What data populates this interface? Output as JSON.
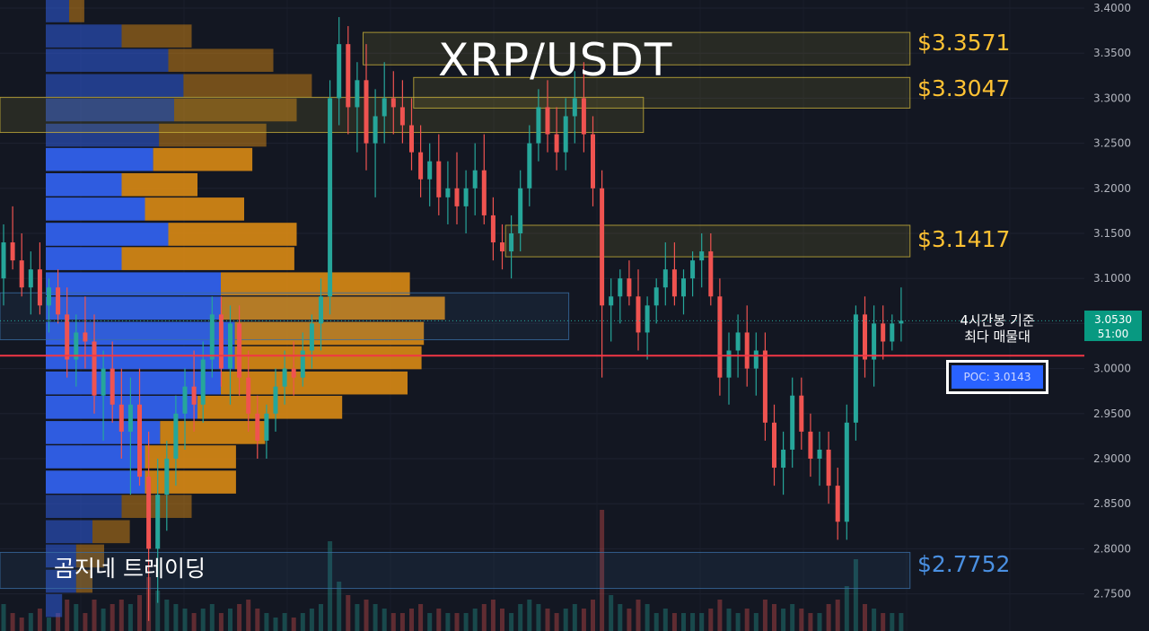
{
  "header": {
    "title": "XRP/USDT"
  },
  "watermark": "곰지네 트레이딩",
  "annotation": {
    "poc_note_line1": "4시간봉 기준",
    "poc_note_line2": "최다 매물대",
    "poc_label": "POC: 3.0143"
  },
  "price_badge": {
    "price": "3.0530",
    "countdown": "51:00"
  },
  "zone_labels": [
    {
      "text": "$3.3571",
      "color": "#ffc233"
    },
    {
      "text": "$3.3047",
      "color": "#ffc233"
    },
    {
      "text": "$3.1417",
      "color": "#ffc233"
    },
    {
      "text": "$2.7752",
      "color": "#4a90e2"
    }
  ],
  "colors": {
    "up": "#26a69a",
    "down": "#ef5350",
    "vp_buy": "#2f5ce0",
    "vp_sell": "#d98a14",
    "zone_yellow": "#c9b23a",
    "zone_blue": "#3a6ea5",
    "poc_line": "#f23645"
  },
  "chart_data": {
    "type": "candlestick",
    "title": "XRP/USDT",
    "timeframe_note": "4시간봉",
    "y_axis": {
      "range": [
        2.72,
        3.41
      ],
      "ticks": [
        "3.4000",
        "3.3500",
        "3.3000",
        "3.2500",
        "3.2000",
        "3.1500",
        "3.1000",
        "3.0500",
        "3.0000",
        "2.9500",
        "2.9000",
        "2.8500",
        "2.8000",
        "2.7500"
      ]
    },
    "current_price": 3.053,
    "poc": 3.0143,
    "zones": [
      {
        "label": "$3.3571",
        "top": 3.373,
        "bottom": 3.337,
        "x_start": 0.316,
        "x_end": 0.792,
        "kind": "resistance"
      },
      {
        "label": "$3.3047",
        "top": 3.323,
        "bottom": 3.289,
        "x_start": 0.36,
        "x_end": 0.792,
        "kind": "resistance"
      },
      {
        "label": "",
        "top": 3.301,
        "bottom": 3.262,
        "x_start": 0.0,
        "x_end": 0.56,
        "kind": "resistance"
      },
      {
        "label": "$3.1417",
        "top": 3.159,
        "bottom": 3.124,
        "x_start": 0.44,
        "x_end": 0.792,
        "kind": "resistance"
      },
      {
        "label": "",
        "top": 3.084,
        "bottom": 3.032,
        "x_start": 0.0,
        "x_end": 0.495,
        "kind": "support"
      },
      {
        "label": "$2.7752",
        "top": 2.796,
        "bottom": 2.756,
        "x_start": 0.0,
        "x_end": 0.792,
        "kind": "support"
      }
    ],
    "volume_profile": {
      "bin_size": 0.0275,
      "bins": [
        {
          "price": 3.397,
          "buy": 20,
          "sell": 13
        },
        {
          "price": 3.369,
          "buy": 65,
          "sell": 60
        },
        {
          "price": 3.342,
          "buy": 105,
          "sell": 90
        },
        {
          "price": 3.314,
          "buy": 118,
          "sell": 110
        },
        {
          "price": 3.287,
          "buy": 110,
          "sell": 105
        },
        {
          "price": 3.259,
          "buy": 97,
          "sell": 92
        },
        {
          "price": 3.232,
          "buy": 92,
          "sell": 85
        },
        {
          "price": 3.204,
          "buy": 65,
          "sell": 65
        },
        {
          "price": 3.177,
          "buy": 85,
          "sell": 85
        },
        {
          "price": 3.149,
          "buy": 105,
          "sell": 110
        },
        {
          "price": 3.122,
          "buy": 65,
          "sell": 148
        },
        {
          "price": 3.094,
          "buy": 150,
          "sell": 162
        },
        {
          "price": 3.067,
          "buy": 150,
          "sell": 192
        },
        {
          "price": 3.039,
          "buy": 162,
          "sell": 162
        },
        {
          "price": 3.012,
          "buy": 162,
          "sell": 160
        },
        {
          "price": 2.984,
          "buy": 150,
          "sell": 160
        },
        {
          "price": 2.957,
          "buy": 130,
          "sell": 124
        },
        {
          "price": 2.929,
          "buy": 98,
          "sell": 90
        },
        {
          "price": 2.902,
          "buy": 85,
          "sell": 78
        },
        {
          "price": 2.874,
          "buy": 85,
          "sell": 78
        },
        {
          "price": 2.847,
          "buy": 65,
          "sell": 60
        },
        {
          "price": 2.819,
          "buy": 40,
          "sell": 32
        },
        {
          "price": 2.792,
          "buy": 26,
          "sell": 24
        },
        {
          "price": 2.764,
          "buy": 26,
          "sell": 14
        },
        {
          "price": 2.737,
          "buy": 14,
          "sell": 0
        }
      ]
    },
    "candles": [
      [
        3.1,
        3.16,
        3.07,
        3.14
      ],
      [
        3.14,
        3.18,
        3.11,
        3.12
      ],
      [
        3.12,
        3.15,
        3.08,
        3.09
      ],
      [
        3.09,
        3.13,
        3.06,
        3.11
      ],
      [
        3.11,
        3.14,
        3.06,
        3.07
      ],
      [
        3.07,
        3.1,
        3.04,
        3.09
      ],
      [
        3.09,
        3.11,
        3.05,
        3.06
      ],
      [
        3.06,
        3.09,
        2.99,
        3.01
      ],
      [
        3.01,
        3.06,
        2.98,
        3.04
      ],
      [
        3.04,
        3.08,
        3.0,
        3.03
      ],
      [
        3.03,
        3.06,
        2.95,
        2.97
      ],
      [
        2.97,
        3.02,
        2.92,
        3.0
      ],
      [
        3.0,
        3.03,
        2.94,
        2.96
      ],
      [
        2.96,
        3.0,
        2.9,
        2.93
      ],
      [
        2.93,
        2.99,
        2.86,
        2.96
      ],
      [
        2.96,
        3.0,
        2.87,
        2.88
      ],
      [
        2.88,
        2.93,
        2.72,
        2.8
      ],
      [
        2.8,
        2.9,
        2.74,
        2.86
      ],
      [
        2.86,
        2.92,
        2.82,
        2.9
      ],
      [
        2.9,
        2.97,
        2.87,
        2.95
      ],
      [
        2.95,
        3.0,
        2.91,
        2.98
      ],
      [
        2.98,
        3.02,
        2.93,
        2.96
      ],
      [
        2.96,
        3.03,
        2.94,
        3.01
      ],
      [
        3.01,
        3.08,
        2.99,
        3.06
      ],
      [
        3.06,
        3.08,
        2.98,
        3.0
      ],
      [
        3.0,
        3.07,
        2.96,
        3.05
      ],
      [
        3.05,
        3.07,
        2.97,
        2.99
      ],
      [
        2.99,
        3.02,
        2.93,
        2.95
      ],
      [
        2.95,
        2.97,
        2.9,
        2.92
      ],
      [
        2.92,
        2.96,
        2.9,
        2.95
      ],
      [
        2.95,
        3.0,
        2.93,
        2.98
      ],
      [
        2.98,
        3.02,
        2.96,
        3.0
      ],
      [
        3.0,
        3.03,
        2.97,
        2.99
      ],
      [
        2.99,
        3.04,
        2.98,
        3.02
      ],
      [
        3.02,
        3.06,
        3.0,
        3.05
      ],
      [
        3.05,
        3.1,
        3.02,
        3.08
      ],
      [
        3.08,
        3.32,
        3.06,
        3.3
      ],
      [
        3.3,
        3.39,
        3.27,
        3.36
      ],
      [
        3.36,
        3.38,
        3.26,
        3.29
      ],
      [
        3.29,
        3.34,
        3.24,
        3.32
      ],
      [
        3.32,
        3.36,
        3.22,
        3.25
      ],
      [
        3.25,
        3.31,
        3.19,
        3.28
      ],
      [
        3.28,
        3.34,
        3.25,
        3.3
      ],
      [
        3.3,
        3.33,
        3.26,
        3.29
      ],
      [
        3.29,
        3.32,
        3.25,
        3.27
      ],
      [
        3.27,
        3.3,
        3.22,
        3.24
      ],
      [
        3.24,
        3.27,
        3.19,
        3.21
      ],
      [
        3.21,
        3.25,
        3.18,
        3.23
      ],
      [
        3.23,
        3.26,
        3.17,
        3.19
      ],
      [
        3.19,
        3.23,
        3.16,
        3.2
      ],
      [
        3.2,
        3.24,
        3.16,
        3.18
      ],
      [
        3.18,
        3.22,
        3.15,
        3.2
      ],
      [
        3.2,
        3.25,
        3.17,
        3.22
      ],
      [
        3.22,
        3.26,
        3.16,
        3.17
      ],
      [
        3.17,
        3.19,
        3.12,
        3.14
      ],
      [
        3.14,
        3.16,
        3.11,
        3.13
      ],
      [
        3.13,
        3.17,
        3.1,
        3.15
      ],
      [
        3.15,
        3.22,
        3.13,
        3.2
      ],
      [
        3.2,
        3.27,
        3.18,
        3.25
      ],
      [
        3.25,
        3.31,
        3.23,
        3.29
      ],
      [
        3.29,
        3.32,
        3.24,
        3.26
      ],
      [
        3.26,
        3.29,
        3.22,
        3.24
      ],
      [
        3.24,
        3.3,
        3.22,
        3.28
      ],
      [
        3.28,
        3.33,
        3.25,
        3.3
      ],
      [
        3.3,
        3.34,
        3.24,
        3.26
      ],
      [
        3.26,
        3.28,
        3.18,
        3.2
      ],
      [
        3.2,
        3.22,
        2.99,
        3.07
      ],
      [
        3.07,
        3.1,
        3.03,
        3.08
      ],
      [
        3.08,
        3.11,
        3.05,
        3.1
      ],
      [
        3.1,
        3.12,
        3.07,
        3.08
      ],
      [
        3.08,
        3.11,
        3.02,
        3.04
      ],
      [
        3.04,
        3.08,
        3.01,
        3.07
      ],
      [
        3.07,
        3.1,
        3.05,
        3.09
      ],
      [
        3.09,
        3.14,
        3.07,
        3.11
      ],
      [
        3.11,
        3.14,
        3.07,
        3.08
      ],
      [
        3.08,
        3.11,
        3.06,
        3.1
      ],
      [
        3.1,
        3.13,
        3.08,
        3.12
      ],
      [
        3.12,
        3.15,
        3.09,
        3.13
      ],
      [
        3.13,
        3.15,
        3.07,
        3.08
      ],
      [
        3.08,
        3.1,
        2.97,
        2.99
      ],
      [
        2.99,
        3.04,
        2.96,
        3.02
      ],
      [
        3.02,
        3.06,
        2.99,
        3.04
      ],
      [
        3.04,
        3.07,
        2.98,
        3.0
      ],
      [
        3.0,
        3.04,
        2.97,
        3.02
      ],
      [
        3.02,
        3.04,
        2.92,
        2.94
      ],
      [
        2.94,
        2.96,
        2.87,
        2.89
      ],
      [
        2.89,
        2.93,
        2.86,
        2.91
      ],
      [
        2.91,
        2.99,
        2.89,
        2.97
      ],
      [
        2.97,
        2.99,
        2.91,
        2.93
      ],
      [
        2.93,
        2.95,
        2.88,
        2.9
      ],
      [
        2.9,
        2.93,
        2.87,
        2.91
      ],
      [
        2.91,
        2.93,
        2.85,
        2.87
      ],
      [
        2.87,
        2.89,
        2.81,
        2.83
      ],
      [
        2.83,
        2.96,
        2.81,
        2.94
      ],
      [
        2.94,
        3.07,
        2.92,
        3.06
      ],
      [
        3.06,
        3.08,
        2.99,
        3.01
      ],
      [
        3.01,
        3.07,
        2.98,
        3.05
      ],
      [
        3.05,
        3.07,
        3.01,
        3.03
      ],
      [
        3.03,
        3.06,
        3.02,
        3.05
      ],
      [
        3.05,
        3.09,
        3.03,
        3.053
      ]
    ],
    "volumes": [
      0.3,
      0.2,
      0.15,
      0.2,
      0.25,
      0.15,
      0.2,
      0.35,
      0.3,
      0.2,
      0.35,
      0.25,
      0.3,
      0.35,
      0.3,
      0.4,
      0.6,
      0.45,
      0.35,
      0.3,
      0.25,
      0.2,
      0.25,
      0.3,
      0.2,
      0.25,
      0.3,
      0.35,
      0.25,
      0.2,
      0.15,
      0.2,
      0.15,
      0.2,
      0.25,
      0.3,
      1.0,
      0.55,
      0.4,
      0.3,
      0.35,
      0.3,
      0.25,
      0.2,
      0.2,
      0.25,
      0.3,
      0.2,
      0.25,
      0.2,
      0.2,
      0.2,
      0.25,
      0.3,
      0.35,
      0.25,
      0.2,
      0.3,
      0.35,
      0.3,
      0.25,
      0.2,
      0.25,
      0.3,
      0.25,
      0.35,
      1.35,
      0.4,
      0.3,
      0.25,
      0.35,
      0.3,
      0.2,
      0.25,
      0.2,
      0.2,
      0.2,
      0.2,
      0.25,
      0.35,
      0.25,
      0.2,
      0.25,
      0.2,
      0.35,
      0.3,
      0.25,
      0.3,
      0.25,
      0.2,
      0.2,
      0.3,
      0.35,
      0.5,
      0.8,
      0.3,
      0.25,
      0.2,
      0.2,
      0.2
    ]
  }
}
